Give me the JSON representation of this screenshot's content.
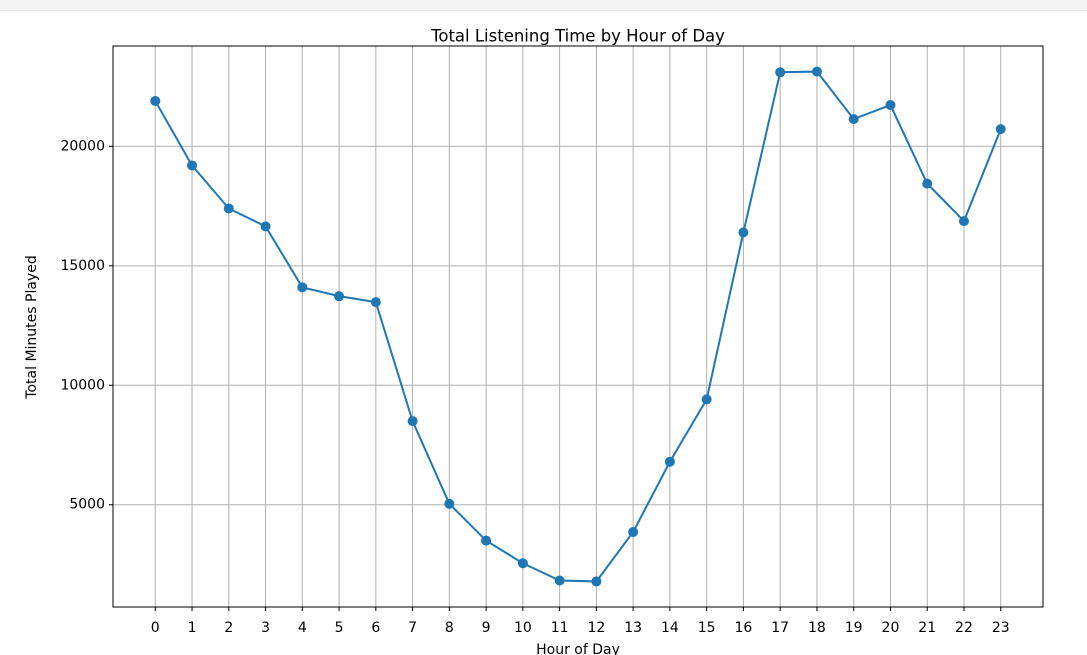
{
  "chart_data": {
    "type": "line",
    "title": "Total Listening Time by Hour of Day",
    "x_label": "Hour of Day",
    "y_label": "Total Minutes Played",
    "x": [
      0,
      1,
      2,
      3,
      4,
      5,
      6,
      7,
      8,
      9,
      10,
      11,
      12,
      13,
      14,
      15,
      16,
      17,
      18,
      19,
      20,
      21,
      22,
      23
    ],
    "series": [
      {
        "color": "#1f77b4",
        "values": [
          21900,
          19200,
          17400,
          16650,
          14100,
          13730,
          13480,
          8500,
          5040,
          3500,
          2550,
          1830,
          1790,
          3860,
          6800,
          9410,
          16400,
          23100,
          23130,
          21140,
          21730,
          18440,
          16870,
          20720
        ]
      }
    ],
    "xlim": [
      -1.15,
      24.15
    ],
    "xticks": [
      0,
      1,
      2,
      3,
      4,
      5,
      6,
      7,
      8,
      9,
      10,
      11,
      12,
      13,
      14,
      15,
      16,
      17,
      18,
      19,
      20,
      21,
      22,
      23
    ],
    "ylim": [
      720,
      24200
    ],
    "yticks": [
      5000,
      10000,
      15000,
      20000
    ],
    "grid": true
  }
}
